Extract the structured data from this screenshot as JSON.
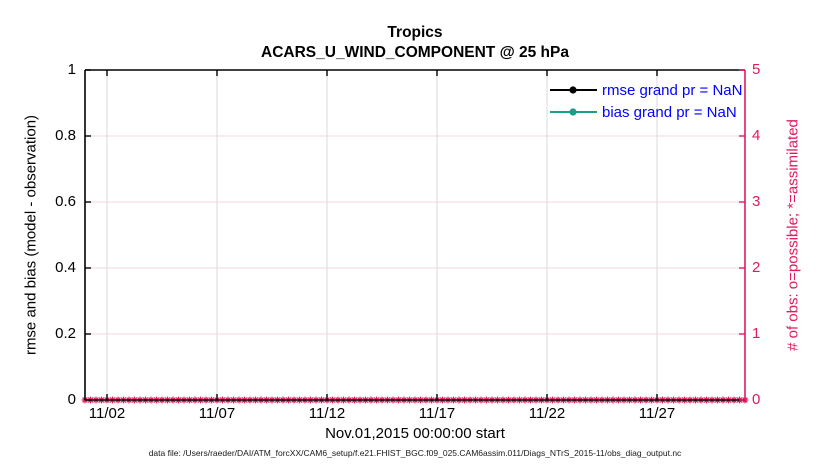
{
  "title": {
    "line1": "Tropics",
    "line2": "ACARS_U_WIND_COMPONENT @ 25 hPa"
  },
  "axes": {
    "x": {
      "label": "Nov.01,2015 00:00:00 start",
      "ticks": [
        "11/02",
        "11/07",
        "11/12",
        "11/17",
        "11/22",
        "11/27"
      ]
    },
    "left": {
      "label": "rmse and bias (model - observation)",
      "ticks": [
        "0",
        "0.2",
        "0.4",
        "0.6",
        "0.8",
        "1"
      ],
      "range": [
        0,
        1
      ]
    },
    "right": {
      "label": "# of obs: o=possible; *=assimilated",
      "ticks": [
        "0",
        "1",
        "2",
        "3",
        "4",
        "5"
      ],
      "range": [
        0,
        5
      ]
    }
  },
  "legend": [
    {
      "label": "rmse grand pr = NaN",
      "color": "#000000"
    },
    {
      "label": "bias grand pr = NaN",
      "color": "#1b9e89"
    }
  ],
  "footer": "data file: /Users/raeder/DAI/ATM_forcXX/CAM6_setup/f.e21.FHIST_BGC.f09_025.CAM6assim.011/Diags_NTrS_2015-11/obs_diag_output.nc",
  "colors": {
    "right_axis_pink": "#de1b60",
    "pink_gridline": "#f6d7e3",
    "gray_gridline": "#d9d9d9",
    "legend_text_blue": "#0000ff",
    "bias_teal": "#1b9e89",
    "rmse_black": "#000000"
  },
  "chart_data": {
    "type": "line",
    "title": "Tropics — ACARS_U_WIND_COMPONENT @ 25 hPa",
    "x_axis": {
      "start": "Nov.01,2015 00:00:00",
      "tick_labels": [
        "11/02",
        "11/07",
        "11/12",
        "11/17",
        "11/22",
        "11/27"
      ],
      "span_days": 30
    },
    "left_axis": {
      "label": "rmse and bias (model - observation)",
      "ylim": [
        0,
        1
      ]
    },
    "right_axis": {
      "label": "# of obs: o=possible; *=assimilated",
      "ylim": [
        0,
        5
      ]
    },
    "grid": true,
    "legend_position": "top-right-inside",
    "series": [
      {
        "name": "rmse grand pr = NaN",
        "axis": "left",
        "values": "NaN (no curve plotted)"
      },
      {
        "name": "bias grand pr = NaN",
        "axis": "left",
        "values": "NaN (no curve plotted)"
      },
      {
        "name": "observations assimilated",
        "axis": "right",
        "marker": "*",
        "value_at_every_6h_step": 0,
        "n_markers": 121,
        "note": "pink asterisk markers at y=0 at every 6-hour time step Nov 1 through Dec 1"
      }
    ]
  }
}
